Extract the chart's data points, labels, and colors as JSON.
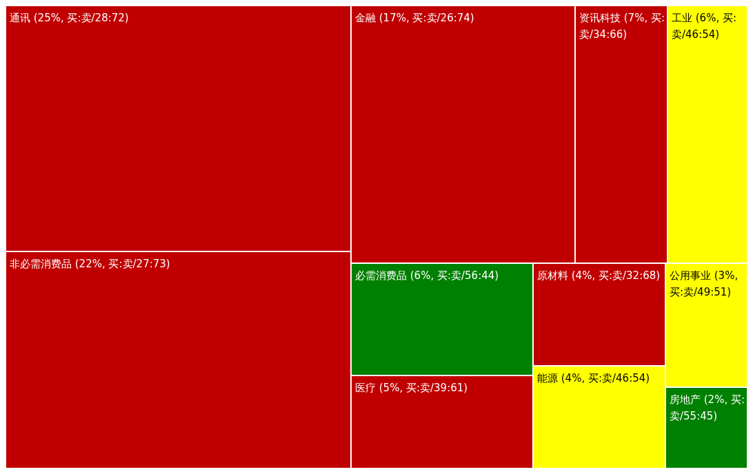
{
  "chart_data": {
    "type": "other",
    "categories": [
      "通讯",
      "非必需消费品",
      "金融",
      "资讯科技",
      "工业",
      "必需消费品",
      "医疗",
      "原材料",
      "能源",
      "公用事业",
      "房地产"
    ],
    "values": [
      25,
      22,
      17,
      7,
      6,
      6,
      5,
      4,
      4,
      3,
      2
    ],
    "value_labels": [
      "(25%, 买:卖/28:72)",
      "(22%, 买:卖/27:73)",
      "(17%, 买:卖/26:74)",
      "(7%, 买:卖/34:66)",
      "(6%, 买:卖/46:54)",
      "(6%, 买:卖/56:44)",
      "(5%, 买:卖/39:61)",
      "(4%, 买:卖/32:68)",
      "(4%, 买:卖/46:54)",
      "(3%, 买:卖/49:51)",
      "(2%, 买:卖/55:45)"
    ],
    "colors": [
      "#c00000",
      "#c00000",
      "#c00000",
      "#c00000",
      "#ffff00",
      "#008000",
      "#c00000",
      "#c00000",
      "#ffff00",
      "#ffff00",
      "#008000"
    ]
  }
}
